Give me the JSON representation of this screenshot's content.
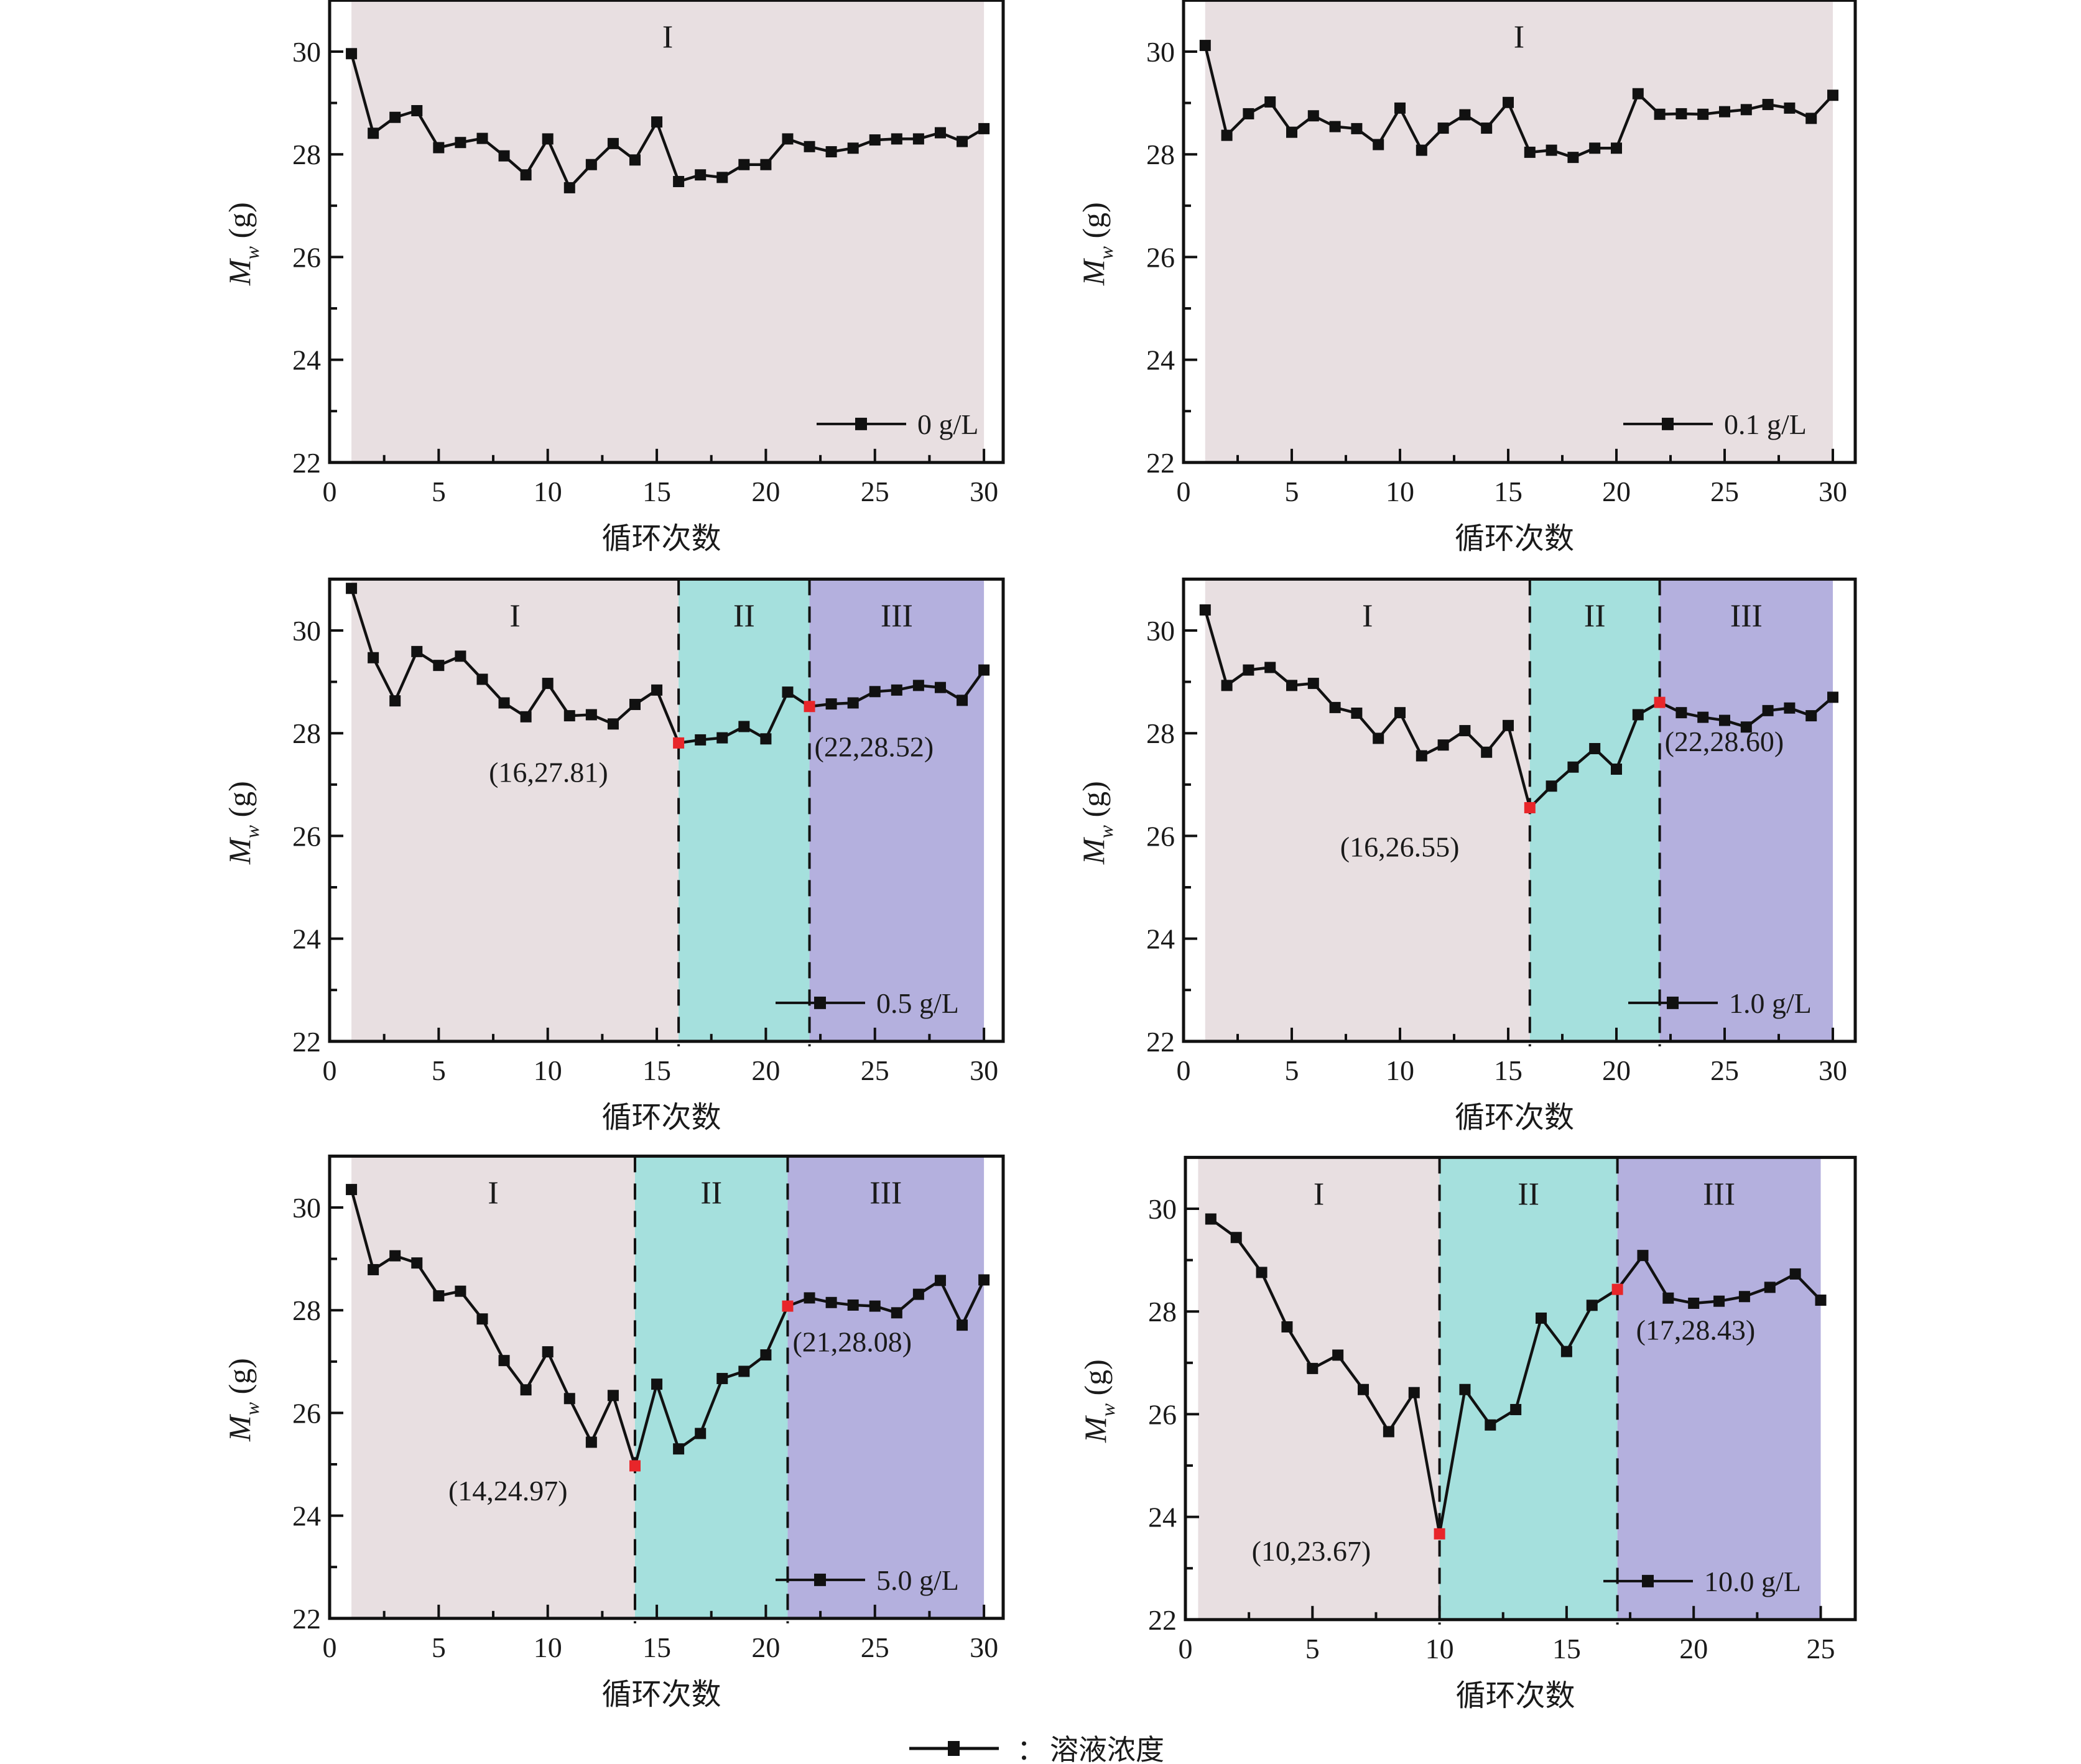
{
  "colors": {
    "region_I": "#e8dfe1",
    "region_II": "#a5e0dd",
    "region_III": "#b4b0de",
    "line": "#111111",
    "marker": "#111111",
    "highlight": "#e8262a"
  },
  "common": {
    "xlabel": "循环次数",
    "ylabel_main": "M",
    "ylabel_sub": "w",
    "ylabel_unit": " (g)",
    "yticks": [
      "22",
      "24",
      "26",
      "28",
      "30"
    ]
  },
  "bottom_legend": {
    "separator": "：",
    "label": "溶液浓度"
  },
  "chart_data": [
    {
      "type": "line",
      "legend": "0 g/L",
      "xlabel": "循环次数",
      "ylabel": "Mw (g)",
      "xlim": [
        0,
        30
      ],
      "ylim": [
        22,
        31
      ],
      "xticks": [
        "0",
        "5",
        "10",
        "15",
        "20",
        "25",
        "30"
      ],
      "regions": [
        {
          "label": "I",
          "from": 1,
          "to": 30,
          "color_key": "region_I"
        }
      ],
      "dividers": [],
      "highlights": [],
      "x": [
        1,
        2,
        3,
        4,
        5,
        6,
        7,
        8,
        9,
        10,
        11,
        12,
        13,
        14,
        15,
        16,
        17,
        18,
        19,
        20,
        21,
        22,
        23,
        24,
        25,
        26,
        27,
        28,
        29,
        30
      ],
      "y": [
        29.96,
        28.41,
        28.72,
        28.85,
        28.13,
        28.23,
        28.31,
        27.97,
        27.6,
        28.3,
        27.35,
        27.8,
        28.21,
        27.89,
        28.63,
        27.47,
        27.6,
        27.55,
        27.8,
        27.8,
        28.3,
        28.15,
        28.05,
        28.12,
        28.28,
        28.3,
        28.3,
        28.42,
        28.25,
        28.5
      ]
    },
    {
      "type": "line",
      "legend": "0.1 g/L",
      "xlabel": "循环次数",
      "ylabel": "Mw (g)",
      "xlim": [
        0,
        30
      ],
      "ylim": [
        22,
        31
      ],
      "xticks": [
        "0",
        "5",
        "10",
        "15",
        "20",
        "25",
        "30"
      ],
      "regions": [
        {
          "label": "I",
          "from": 1,
          "to": 30,
          "color_key": "region_I"
        }
      ],
      "dividers": [],
      "highlights": [],
      "x": [
        1,
        2,
        3,
        4,
        5,
        6,
        7,
        8,
        9,
        10,
        11,
        12,
        13,
        14,
        15,
        16,
        17,
        18,
        19,
        20,
        21,
        22,
        23,
        24,
        25,
        26,
        27,
        28,
        29,
        30
      ],
      "y": [
        30.12,
        28.37,
        28.79,
        29.02,
        28.43,
        28.75,
        28.54,
        28.5,
        28.19,
        28.9,
        28.08,
        28.51,
        28.77,
        28.51,
        29.01,
        28.04,
        28.08,
        27.94,
        28.12,
        28.12,
        29.18,
        28.78,
        28.79,
        28.78,
        28.83,
        28.87,
        28.97,
        28.9,
        28.7,
        29.15
      ]
    },
    {
      "type": "line",
      "legend": "0.5 g/L",
      "xlabel": "循环次数",
      "ylabel": "Mw (g)",
      "xlim": [
        0,
        30
      ],
      "ylim": [
        22,
        31
      ],
      "xticks": [
        "0",
        "5",
        "10",
        "15",
        "20",
        "25",
        "30"
      ],
      "regions": [
        {
          "label": "I",
          "from": 1,
          "to": 16,
          "color_key": "region_I"
        },
        {
          "label": "II",
          "from": 16,
          "to": 22,
          "color_key": "region_II"
        },
        {
          "label": "III",
          "from": 22,
          "to": 30,
          "color_key": "region_III"
        }
      ],
      "dividers": [
        16,
        22
      ],
      "highlights": [
        {
          "x": 16,
          "y": 27.81,
          "label": "(16,27.81)"
        },
        {
          "x": 22,
          "y": 28.52,
          "label": "(22,28.52)"
        }
      ],
      "x": [
        1,
        2,
        3,
        4,
        5,
        6,
        7,
        8,
        9,
        10,
        11,
        12,
        13,
        14,
        15,
        16,
        17,
        18,
        19,
        20,
        21,
        22,
        23,
        24,
        25,
        26,
        27,
        28,
        29,
        30
      ],
      "y": [
        30.82,
        29.47,
        28.63,
        29.59,
        29.32,
        29.5,
        29.05,
        28.59,
        28.32,
        28.97,
        28.34,
        28.36,
        28.18,
        28.56,
        28.84,
        27.81,
        27.87,
        27.91,
        28.13,
        27.89,
        28.8,
        28.52,
        28.57,
        28.59,
        28.81,
        28.84,
        28.93,
        28.89,
        28.64,
        29.23
      ]
    },
    {
      "type": "line",
      "legend": "1.0 g/L",
      "xlabel": "循环次数",
      "ylabel": "Mw (g)",
      "xlim": [
        0,
        30
      ],
      "ylim": [
        22,
        31
      ],
      "xticks": [
        "0",
        "5",
        "10",
        "15",
        "20",
        "25",
        "30"
      ],
      "regions": [
        {
          "label": "I",
          "from": 1,
          "to": 16,
          "color_key": "region_I"
        },
        {
          "label": "II",
          "from": 16,
          "to": 22,
          "color_key": "region_II"
        },
        {
          "label": "III",
          "from": 22,
          "to": 30,
          "color_key": "region_III"
        }
      ],
      "dividers": [
        16,
        22
      ],
      "highlights": [
        {
          "x": 16,
          "y": 26.55,
          "label": "(16,26.55)"
        },
        {
          "x": 22,
          "y": 28.6,
          "label": "(22,28.60)"
        }
      ],
      "x": [
        1,
        2,
        3,
        4,
        5,
        6,
        7,
        8,
        9,
        10,
        11,
        12,
        13,
        14,
        15,
        16,
        17,
        18,
        19,
        20,
        21,
        22,
        23,
        24,
        25,
        26,
        27,
        28,
        29,
        30
      ],
      "y": [
        30.4,
        28.93,
        29.23,
        29.28,
        28.93,
        28.97,
        28.5,
        28.39,
        27.9,
        28.4,
        27.56,
        27.77,
        28.05,
        27.63,
        28.15,
        26.55,
        26.97,
        27.34,
        27.7,
        27.3,
        28.36,
        28.6,
        28.4,
        28.31,
        28.25,
        28.12,
        28.44,
        28.49,
        28.34,
        28.7
      ]
    },
    {
      "type": "line",
      "legend": "5.0 g/L",
      "xlabel": "循环次数",
      "ylabel": "Mw (g)",
      "xlim": [
        0,
        30
      ],
      "ylim": [
        22,
        31
      ],
      "xticks": [
        "0",
        "5",
        "10",
        "15",
        "20",
        "25",
        "30"
      ],
      "regions": [
        {
          "label": "I",
          "from": 1,
          "to": 14,
          "color_key": "region_I"
        },
        {
          "label": "II",
          "from": 14,
          "to": 21,
          "color_key": "region_II"
        },
        {
          "label": "III",
          "from": 21,
          "to": 30,
          "color_key": "region_III"
        }
      ],
      "dividers": [
        14,
        21
      ],
      "highlights": [
        {
          "x": 14,
          "y": 24.97,
          "label": "(14,24.97)"
        },
        {
          "x": 21,
          "y": 28.08,
          "label": "(21,28.08)"
        }
      ],
      "x": [
        1,
        2,
        3,
        4,
        5,
        6,
        7,
        8,
        9,
        10,
        11,
        12,
        13,
        14,
        15,
        16,
        17,
        18,
        19,
        20,
        21,
        22,
        23,
        24,
        25,
        26,
        27,
        28,
        29,
        30
      ],
      "y": [
        30.35,
        28.79,
        29.06,
        28.92,
        28.28,
        28.37,
        27.83,
        27.02,
        26.45,
        27.19,
        26.28,
        25.43,
        26.34,
        24.97,
        26.56,
        25.3,
        25.6,
        26.67,
        26.81,
        27.13,
        28.08,
        28.24,
        28.15,
        28.1,
        28.08,
        27.95,
        28.31,
        28.58,
        27.71,
        28.59
      ]
    },
    {
      "type": "line",
      "legend": "10.0 g/L",
      "xlabel": "循环次数",
      "ylabel": "Mw (g)",
      "xlim": [
        0,
        25
      ],
      "ylim": [
        22,
        31
      ],
      "xticks": [
        "0",
        "5",
        "10",
        "15",
        "20",
        "25"
      ],
      "regions": [
        {
          "label": "I",
          "from": 0.5,
          "to": 10,
          "color_key": "region_I"
        },
        {
          "label": "II",
          "from": 10,
          "to": 17,
          "color_key": "region_II"
        },
        {
          "label": "III",
          "from": 17,
          "to": 25,
          "color_key": "region_III"
        }
      ],
      "dividers": [
        10,
        17
      ],
      "highlights": [
        {
          "x": 10,
          "y": 23.67,
          "label": "(10,23.67)"
        },
        {
          "x": 17,
          "y": 28.43,
          "label": "(17,28.43)"
        }
      ],
      "x": [
        1,
        2,
        3,
        4,
        5,
        6,
        7,
        8,
        9,
        10,
        11,
        12,
        13,
        14,
        15,
        16,
        17,
        18,
        19,
        20,
        21,
        22,
        23,
        24,
        25
      ],
      "y": [
        29.8,
        29.44,
        28.76,
        27.7,
        26.89,
        27.15,
        26.48,
        25.66,
        26.42,
        23.67,
        26.48,
        25.79,
        26.09,
        27.87,
        27.22,
        28.12,
        28.43,
        29.09,
        28.26,
        28.16,
        28.2,
        28.29,
        28.47,
        28.73,
        28.22
      ]
    }
  ]
}
